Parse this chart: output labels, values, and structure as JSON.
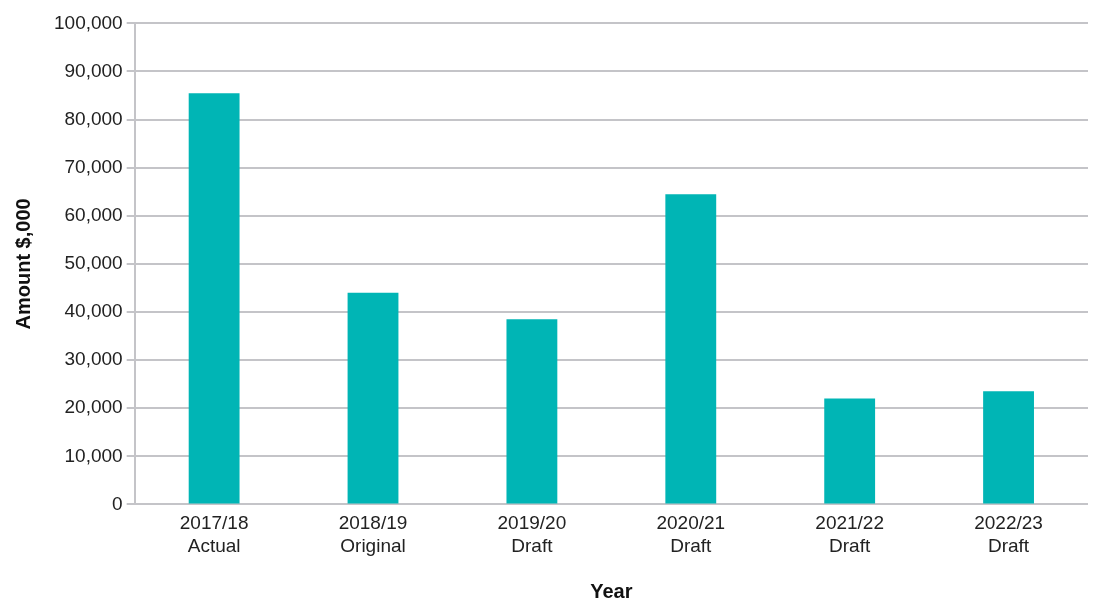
{
  "chart_data": {
    "type": "bar",
    "xlabel": "Year",
    "ylabel": "Amount $,000",
    "categories": [
      "2017/18\nActual",
      "2018/19\nOriginal",
      "2019/20\nDraft",
      "2020/21\nDraft",
      "2021/22\nDraft",
      "2022/23\nDraft"
    ],
    "values": [
      85500,
      44000,
      38500,
      64500,
      22000,
      23500
    ],
    "color": "#00b5b5",
    "ylim": [
      0,
      100000
    ],
    "yticks": [
      0,
      {
        "value": 10000,
        "label": "10,000"
      },
      {
        "value": 20000,
        "label": "20,000"
      },
      {
        "value": 30000,
        "label": "30,000"
      },
      {
        "value": 40000,
        "label": "40,000"
      },
      {
        "value": 50000,
        "label": "50,000"
      },
      {
        "value": 60000,
        "label": "60,000"
      },
      {
        "value": 70000,
        "label": "70,000"
      },
      {
        "value": 80000,
        "label": "80,000"
      },
      {
        "value": 90000,
        "label": "90,000"
      },
      {
        "value": 100000,
        "label": "100,000"
      }
    ],
    "grid": "y",
    "legend": false
  }
}
